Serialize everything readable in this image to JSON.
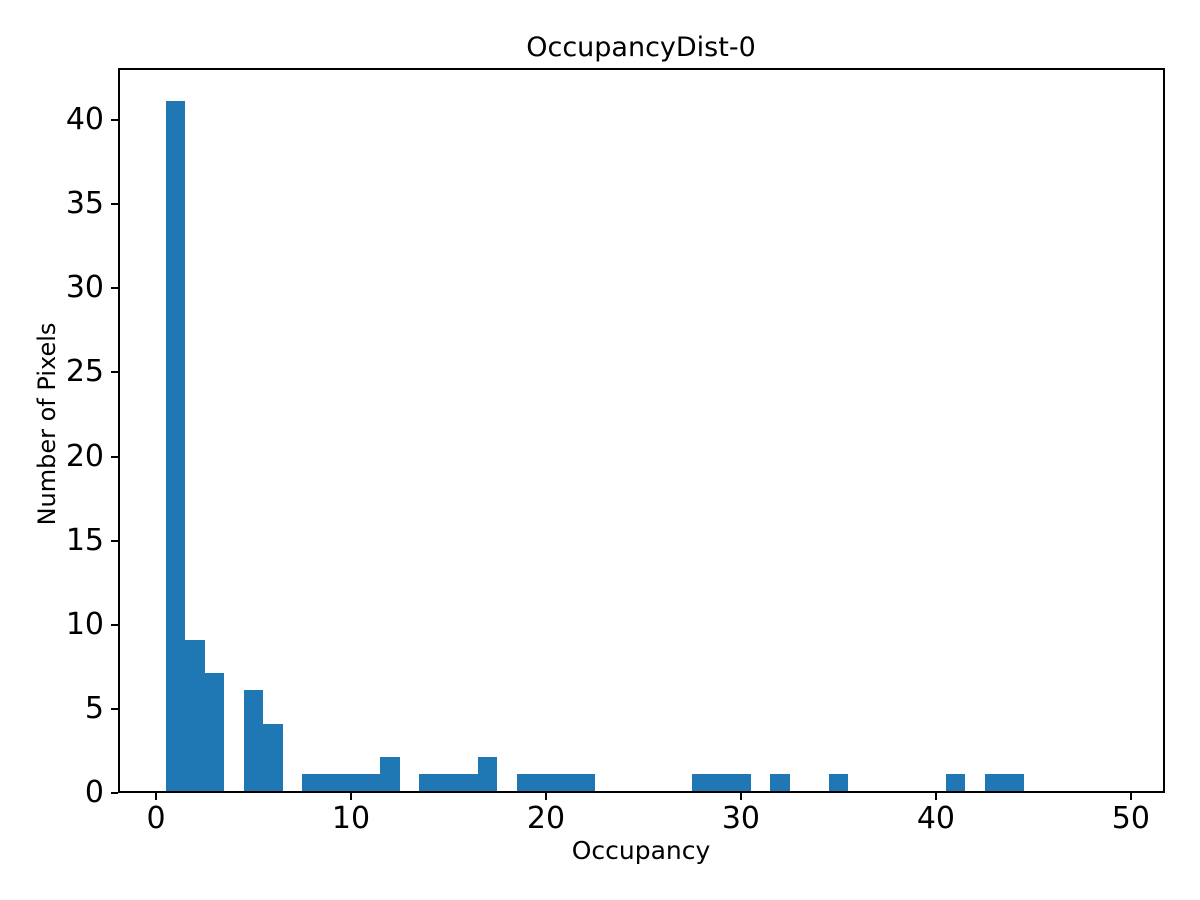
{
  "chart_data": {
    "type": "bar",
    "subtype": "histogram",
    "title": "OccupancyDist-0",
    "xlabel": "Occupancy",
    "ylabel": "Number of Pixels",
    "bar_color": "#1f77b4",
    "text_color": "#000000",
    "bin_width": 1,
    "xlim": [
      -1.95,
      51.75
    ],
    "ylim": [
      0,
      43.1
    ],
    "xticks": [
      0,
      10,
      20,
      30,
      40,
      50
    ],
    "yticks": [
      0,
      5,
      10,
      15,
      20,
      25,
      30,
      35,
      40
    ],
    "grid": false,
    "legend": null,
    "bars": [
      {
        "center": 1,
        "count": 41
      },
      {
        "center": 2,
        "count": 9
      },
      {
        "center": 3,
        "count": 7
      },
      {
        "center": 5,
        "count": 6
      },
      {
        "center": 6,
        "count": 4
      },
      {
        "center": 8,
        "count": 1
      },
      {
        "center": 9,
        "count": 1
      },
      {
        "center": 10,
        "count": 1
      },
      {
        "center": 11,
        "count": 1
      },
      {
        "center": 12,
        "count": 2
      },
      {
        "center": 14,
        "count": 1
      },
      {
        "center": 15,
        "count": 1
      },
      {
        "center": 16,
        "count": 1
      },
      {
        "center": 17,
        "count": 2
      },
      {
        "center": 19,
        "count": 1
      },
      {
        "center": 20,
        "count": 1
      },
      {
        "center": 21,
        "count": 1
      },
      {
        "center": 22,
        "count": 1
      },
      {
        "center": 28,
        "count": 1
      },
      {
        "center": 29,
        "count": 1
      },
      {
        "center": 30,
        "count": 1
      },
      {
        "center": 32,
        "count": 1
      },
      {
        "center": 35,
        "count": 1
      },
      {
        "center": 41,
        "count": 1
      },
      {
        "center": 43,
        "count": 1
      },
      {
        "center": 44,
        "count": 1
      }
    ]
  }
}
